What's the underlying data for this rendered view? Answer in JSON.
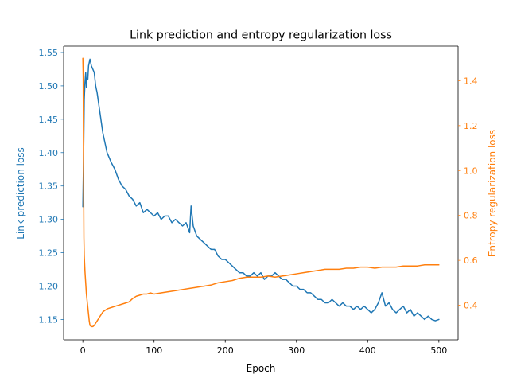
{
  "chart_data": {
    "type": "line",
    "title": "Link prediction and entropy regularization loss",
    "xlabel": "Epoch",
    "xlim": [
      -27,
      527
    ],
    "x_ticks": [
      0,
      100,
      200,
      300,
      400,
      500
    ],
    "grid": false,
    "legend": "none",
    "axes": {
      "left": {
        "label": "Link prediction loss",
        "color": "#1f77b4",
        "ylim": [
          1.1195,
          1.5595
        ],
        "ticks": [
          1.15,
          1.2,
          1.25,
          1.3,
          1.35,
          1.4,
          1.45,
          1.5,
          1.55
        ],
        "tick_labels": [
          "1.15",
          "1.20",
          "1.25",
          "1.30",
          "1.35",
          "1.40",
          "1.45",
          "1.50",
          "1.55"
        ]
      },
      "right": {
        "label": "Entropy regularization loss",
        "color": "#ff7f0e",
        "ylim": [
          0.246,
          1.554
        ],
        "ticks": [
          0.4,
          0.6,
          0.8,
          1.0,
          1.2,
          1.4
        ],
        "tick_labels": [
          "0.4",
          "0.6",
          "0.8",
          "1.0",
          "1.2",
          "1.4"
        ]
      }
    },
    "series": [
      {
        "axis": "left",
        "color": "#1f77b4",
        "x": [
          0,
          1,
          2,
          3,
          4,
          5,
          6,
          7,
          8,
          9,
          10,
          12,
          14,
          16,
          18,
          20,
          22,
          24,
          26,
          28,
          30,
          32,
          34,
          36,
          38,
          40,
          45,
          50,
          55,
          60,
          65,
          70,
          75,
          80,
          85,
          90,
          95,
          100,
          105,
          110,
          115,
          120,
          125,
          130,
          135,
          140,
          145,
          150,
          152,
          155,
          160,
          165,
          170,
          175,
          180,
          185,
          190,
          195,
          200,
          205,
          210,
          215,
          220,
          225,
          230,
          235,
          240,
          245,
          250,
          255,
          260,
          265,
          270,
          275,
          280,
          285,
          290,
          295,
          300,
          305,
          310,
          315,
          320,
          325,
          330,
          335,
          340,
          345,
          350,
          355,
          360,
          365,
          370,
          375,
          380,
          385,
          390,
          395,
          400,
          405,
          410,
          415,
          420,
          425,
          430,
          435,
          440,
          445,
          450,
          455,
          460,
          465,
          470,
          475,
          480,
          485,
          490,
          495,
          500
        ],
        "y": [
          1.319,
          1.39,
          1.48,
          1.505,
          1.52,
          1.498,
          1.512,
          1.51,
          1.53,
          1.535,
          1.54,
          1.53,
          1.525,
          1.52,
          1.5,
          1.49,
          1.475,
          1.46,
          1.445,
          1.43,
          1.42,
          1.41,
          1.4,
          1.395,
          1.39,
          1.385,
          1.375,
          1.36,
          1.35,
          1.345,
          1.335,
          1.33,
          1.32,
          1.325,
          1.31,
          1.315,
          1.31,
          1.305,
          1.31,
          1.3,
          1.305,
          1.305,
          1.295,
          1.3,
          1.295,
          1.29,
          1.295,
          1.28,
          1.32,
          1.29,
          1.275,
          1.27,
          1.265,
          1.26,
          1.255,
          1.255,
          1.245,
          1.24,
          1.24,
          1.235,
          1.23,
          1.225,
          1.22,
          1.22,
          1.215,
          1.215,
          1.22,
          1.215,
          1.22,
          1.21,
          1.215,
          1.215,
          1.22,
          1.215,
          1.21,
          1.21,
          1.205,
          1.2,
          1.2,
          1.195,
          1.195,
          1.19,
          1.19,
          1.185,
          1.18,
          1.18,
          1.175,
          1.175,
          1.18,
          1.175,
          1.17,
          1.175,
          1.17,
          1.17,
          1.165,
          1.17,
          1.165,
          1.17,
          1.165,
          1.16,
          1.165,
          1.175,
          1.19,
          1.17,
          1.175,
          1.165,
          1.16,
          1.165,
          1.17,
          1.16,
          1.165,
          1.155,
          1.16,
          1.155,
          1.15,
          1.155,
          1.15,
          1.148,
          1.15
        ]
      },
      {
        "axis": "right",
        "color": "#ff7f0e",
        "x": [
          0,
          0.5,
          1,
          1.5,
          2,
          3,
          4,
          5,
          6,
          7,
          8,
          9,
          10,
          12,
          14,
          16,
          18,
          20,
          22,
          24,
          26,
          28,
          30,
          35,
          40,
          45,
          50,
          55,
          60,
          65,
          70,
          75,
          80,
          85,
          90,
          95,
          100,
          110,
          120,
          130,
          140,
          150,
          160,
          170,
          180,
          190,
          200,
          210,
          220,
          230,
          240,
          250,
          260,
          270,
          280,
          290,
          300,
          310,
          320,
          330,
          340,
          350,
          360,
          370,
          380,
          390,
          400,
          410,
          420,
          430,
          440,
          450,
          460,
          470,
          480,
          490,
          500
        ],
        "y": [
          1.5,
          1.42,
          1.0,
          0.7,
          0.62,
          0.55,
          0.5,
          0.45,
          0.42,
          0.39,
          0.36,
          0.33,
          0.31,
          0.305,
          0.305,
          0.31,
          0.32,
          0.33,
          0.34,
          0.35,
          0.36,
          0.37,
          0.375,
          0.385,
          0.39,
          0.395,
          0.4,
          0.405,
          0.41,
          0.415,
          0.43,
          0.44,
          0.445,
          0.45,
          0.45,
          0.455,
          0.45,
          0.455,
          0.46,
          0.465,
          0.47,
          0.475,
          0.48,
          0.485,
          0.49,
          0.5,
          0.505,
          0.51,
          0.52,
          0.525,
          0.525,
          0.525,
          0.53,
          0.525,
          0.53,
          0.535,
          0.54,
          0.545,
          0.55,
          0.555,
          0.56,
          0.56,
          0.56,
          0.565,
          0.565,
          0.57,
          0.57,
          0.565,
          0.57,
          0.57,
          0.57,
          0.575,
          0.575,
          0.575,
          0.58,
          0.58,
          0.58
        ]
      }
    ]
  }
}
